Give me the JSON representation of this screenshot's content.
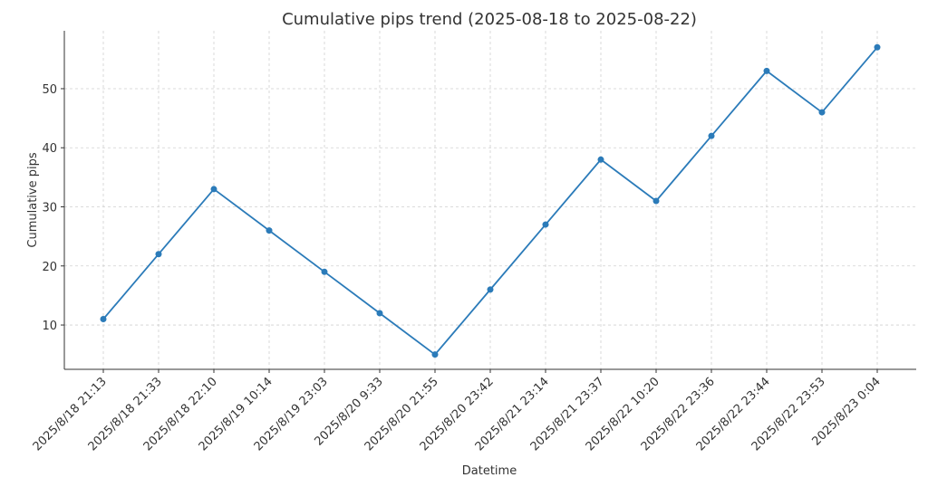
{
  "chart_data": {
    "type": "line",
    "title": "Cumulative pips trend (2025-08-18 to 2025-08-22)",
    "x_label": "Datetime",
    "y_label": "Cumulative pips",
    "categories": [
      "2025/8/18 21:13",
      "2025/8/18 21:33",
      "2025/8/18 22:10",
      "2025/8/19 10:14",
      "2025/8/19 23:03",
      "2025/8/20 9:33",
      "2025/8/20 21:55",
      "2025/8/20 23:42",
      "2025/8/21 23:14",
      "2025/8/21 23:37",
      "2025/8/22 10:20",
      "2025/8/22 23:36",
      "2025/8/22 23:44",
      "2025/8/22 23:53",
      "2025/8/23 0:04"
    ],
    "values": [
      11,
      22,
      33,
      26,
      19,
      12,
      5,
      16,
      27,
      38,
      31,
      42,
      53,
      46,
      57
    ],
    "color": "#2b7bb9",
    "ylim": [
      2.5,
      59.8
    ],
    "yticks": [
      10,
      20,
      30,
      40,
      50
    ],
    "grid": true
  }
}
